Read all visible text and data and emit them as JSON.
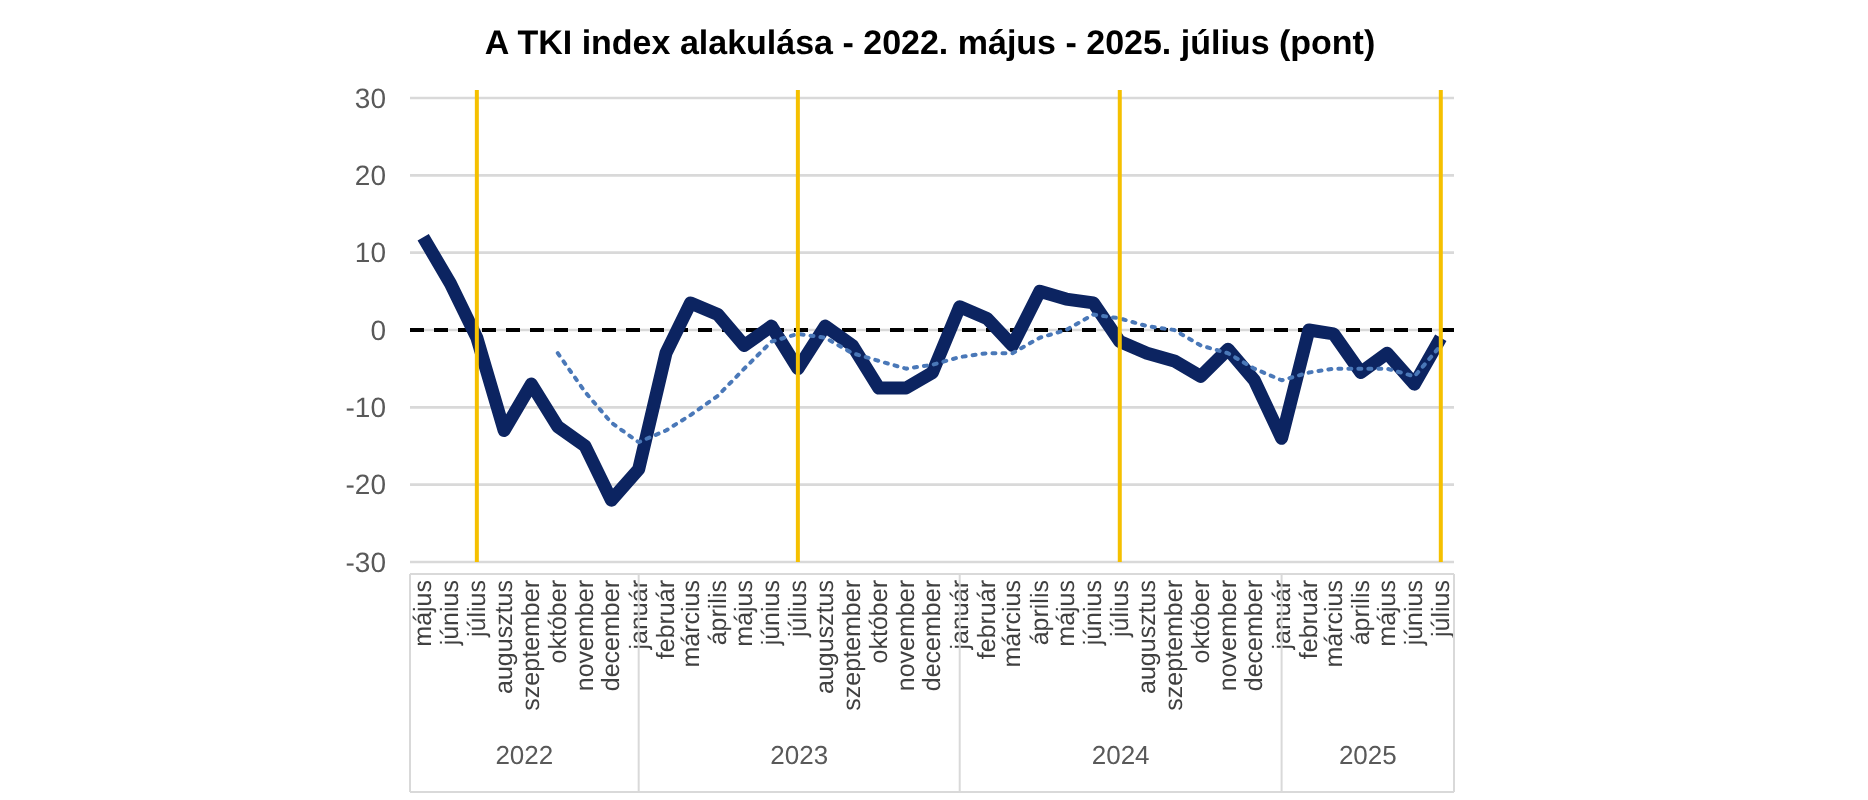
{
  "chart_data": {
    "type": "line",
    "title": "A TKI index alakulása - 2022. május - 2025. július (pont)",
    "x": [
      "2022-05",
      "2022-06",
      "2022-07",
      "2022-08",
      "2022-09",
      "2022-10",
      "2022-11",
      "2022-12",
      "2023-01",
      "2023-02",
      "2023-03",
      "2023-04",
      "2023-05",
      "2023-06",
      "2023-07",
      "2023-08",
      "2023-09",
      "2023-10",
      "2023-11",
      "2023-12",
      "2024-01",
      "2024-02",
      "2024-03",
      "2024-04",
      "2024-05",
      "2024-06",
      "2024-07",
      "2024-08",
      "2024-09",
      "2024-10",
      "2024-11",
      "2024-12",
      "2025-01",
      "2025-02",
      "2025-03",
      "2025-04",
      "2025-05",
      "2025-06",
      "2025-07"
    ],
    "xlim": [
      "2022-04-16",
      "2025-07-16"
    ],
    "xticks": [
      {
        "value": "2022-05",
        "label": "május"
      },
      {
        "value": "2022-06",
        "label": "június"
      },
      {
        "value": "2022-07",
        "label": "július"
      },
      {
        "value": "2022-08",
        "label": "augusztus"
      },
      {
        "value": "2022-09",
        "label": "szeptember"
      },
      {
        "value": "2022-10",
        "label": "október"
      },
      {
        "value": "2022-11",
        "label": "november"
      },
      {
        "value": "2022-12",
        "label": "december"
      },
      {
        "value": "2023-01",
        "label": "január"
      },
      {
        "value": "2023-02",
        "label": "február"
      },
      {
        "value": "2023-03",
        "label": "március"
      },
      {
        "value": "2023-04",
        "label": "április"
      },
      {
        "value": "2023-05",
        "label": "május"
      },
      {
        "value": "2023-06",
        "label": "június"
      },
      {
        "value": "2023-07",
        "label": "július"
      },
      {
        "value": "2023-08",
        "label": "augusztus"
      },
      {
        "value": "2023-09",
        "label": "szeptember"
      },
      {
        "value": "2023-10",
        "label": "október"
      },
      {
        "value": "2023-11",
        "label": "november"
      },
      {
        "value": "2023-12",
        "label": "december"
      },
      {
        "value": "2024-01",
        "label": "január"
      },
      {
        "value": "2024-02",
        "label": "február"
      },
      {
        "value": "2024-03",
        "label": "március"
      },
      {
        "value": "2024-04",
        "label": "április"
      },
      {
        "value": "2024-05",
        "label": "május"
      },
      {
        "value": "2024-06",
        "label": "június"
      },
      {
        "value": "2024-07",
        "label": "július"
      },
      {
        "value": "2024-08",
        "label": "augusztus"
      },
      {
        "value": "2024-09",
        "label": "szeptember"
      },
      {
        "value": "2024-10",
        "label": "október"
      },
      {
        "value": "2024-11",
        "label": "november"
      },
      {
        "value": "2024-12",
        "label": "december"
      },
      {
        "value": "2025-01",
        "label": "január"
      },
      {
        "value": "2025-02",
        "label": "február"
      },
      {
        "value": "2025-03",
        "label": "március"
      },
      {
        "value": "2025-04",
        "label": "április"
      },
      {
        "value": "2025-05",
        "label": "május"
      },
      {
        "value": "2025-06",
        "label": "június"
      },
      {
        "value": "2025-07",
        "label": "július"
      }
    ],
    "series": [
      {
        "color": "#0c2461",
        "values": [
          12,
          6,
          -1,
          -13,
          -7,
          -12.5,
          -15,
          -22,
          -18,
          -3,
          3.5,
          2,
          -2,
          0.5,
          -5,
          0.5,
          -2,
          -7.5,
          -7.5,
          -5.5,
          3,
          1.5,
          -2,
          5,
          4,
          3.5,
          -1.5,
          -3,
          -4,
          -6,
          -2.5,
          -6.5,
          -14,
          0,
          -0.5,
          -5.5,
          -3,
          -7,
          -1
        ]
      },
      {
        "color": "#4a78b8",
        "line_style": "dotted",
        "values": [
          null,
          null,
          null,
          null,
          null,
          -3,
          -8,
          -12,
          -14.5,
          -13,
          -11,
          -8.5,
          -5,
          -1.5,
          -0.5,
          -1,
          -3,
          -4,
          -5,
          -4.5,
          -3.5,
          -3,
          -3,
          -1,
          0,
          2,
          1.5,
          0.5,
          0,
          -2,
          -3,
          -5,
          -6.5,
          -5.5,
          -5,
          -5,
          -5,
          -6,
          -2
        ]
      }
    ],
    "ylim": [
      -30,
      30
    ],
    "yticks": [
      -30,
      -20,
      -10,
      0,
      10,
      20,
      30
    ],
    "grid": "y",
    "ref_lines": [
      {
        "axis": "y",
        "value": 0,
        "color": "#000000",
        "line_style": "dashed"
      },
      {
        "axis": "x",
        "value": "2022-07",
        "color": "#f5c000"
      },
      {
        "axis": "x",
        "value": "2023-07",
        "color": "#f5c000"
      },
      {
        "axis": "x",
        "value": "2024-07",
        "color": "#f5c000"
      },
      {
        "axis": "x",
        "value": "2025-07",
        "color": "#f5c000"
      }
    ],
    "annotations": [
      "2022",
      "2023",
      "2024",
      "2025"
    ]
  }
}
